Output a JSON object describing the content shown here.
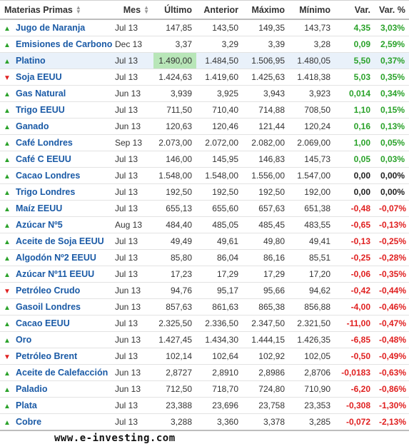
{
  "headers": {
    "name": "Materias Primas",
    "month": "Mes",
    "last": "Último",
    "prev": "Anterior",
    "high": "Máximo",
    "low": "Mínimo",
    "chg": "Var.",
    "chg_pct": "Var. %"
  },
  "colors": {
    "up": "#2aa22a",
    "down": "#e02020",
    "link": "#1a5aa6",
    "flash": "#b8e6b8",
    "highlight": "#e9f1fa"
  },
  "rows": [
    {
      "name": "Jugo de Naranja",
      "month": "Jul 13",
      "last": "147,85",
      "prev": "143,50",
      "high": "149,35",
      "low": "143,73",
      "chg": "4,35",
      "pct": "3,03%",
      "dir": "up"
    },
    {
      "name": "Emisiones de Carbono",
      "month": "Dec 13",
      "last": "3,37",
      "prev": "3,29",
      "high": "3,39",
      "low": "3,28",
      "chg": "0,09",
      "pct": "2,59%",
      "dir": "up"
    },
    {
      "name": "Platino",
      "month": "Jul 13",
      "last": "1.490,00",
      "prev": "1.484,50",
      "high": "1.506,95",
      "low": "1.480,05",
      "chg": "5,50",
      "pct": "0,37%",
      "dir": "up",
      "highlight": true,
      "flash": true
    },
    {
      "name": "Soja EEUU",
      "month": "Jul 13",
      "last": "1.424,63",
      "prev": "1.419,60",
      "high": "1.425,63",
      "low": "1.418,38",
      "chg": "5,03",
      "pct": "0,35%",
      "dir": "up",
      "arrow": "down"
    },
    {
      "name": "Gas Natural",
      "month": "Jun 13",
      "last": "3,939",
      "prev": "3,925",
      "high": "3,943",
      "low": "3,923",
      "chg": "0,014",
      "pct": "0,34%",
      "dir": "up"
    },
    {
      "name": "Trigo EEUU",
      "month": "Jul 13",
      "last": "711,50",
      "prev": "710,40",
      "high": "714,88",
      "low": "708,50",
      "chg": "1,10",
      "pct": "0,15%",
      "dir": "up"
    },
    {
      "name": "Ganado",
      "month": "Jun 13",
      "last": "120,63",
      "prev": "120,46",
      "high": "121,44",
      "low": "120,24",
      "chg": "0,16",
      "pct": "0,13%",
      "dir": "up"
    },
    {
      "name": "Café Londres",
      "month": "Sep 13",
      "last": "2.073,00",
      "prev": "2.072,00",
      "high": "2.082,00",
      "low": "2.069,00",
      "chg": "1,00",
      "pct": "0,05%",
      "dir": "up"
    },
    {
      "name": "Café C EEUU",
      "month": "Jul 13",
      "last": "146,00",
      "prev": "145,95",
      "high": "146,83",
      "low": "145,73",
      "chg": "0,05",
      "pct": "0,03%",
      "dir": "up"
    },
    {
      "name": "Cacao Londres",
      "month": "Jul 13",
      "last": "1.548,00",
      "prev": "1.548,00",
      "high": "1.556,00",
      "low": "1.547,00",
      "chg": "0,00",
      "pct": "0,00%",
      "dir": "neu",
      "arrow": "up"
    },
    {
      "name": "Trigo Londres",
      "month": "Jul 13",
      "last": "192,50",
      "prev": "192,50",
      "high": "192,50",
      "low": "192,00",
      "chg": "0,00",
      "pct": "0,00%",
      "dir": "neu",
      "arrow": "up"
    },
    {
      "name": "Maíz EEUU",
      "month": "Jul 13",
      "last": "655,13",
      "prev": "655,60",
      "high": "657,63",
      "low": "651,38",
      "chg": "-0,48",
      "pct": "-0,07%",
      "dir": "down",
      "arrow": "up"
    },
    {
      "name": "Azúcar Nº5",
      "month": "Aug 13",
      "last": "484,40",
      "prev": "485,05",
      "high": "485,45",
      "low": "483,55",
      "chg": "-0,65",
      "pct": "-0,13%",
      "dir": "down",
      "arrow": "up"
    },
    {
      "name": "Aceite de Soja EEUU",
      "month": "Jul 13",
      "last": "49,49",
      "prev": "49,61",
      "high": "49,80",
      "low": "49,41",
      "chg": "-0,13",
      "pct": "-0,25%",
      "dir": "down",
      "arrow": "up"
    },
    {
      "name": "Algodón Nº2 EEUU",
      "month": "Jul 13",
      "last": "85,80",
      "prev": "86,04",
      "high": "86,16",
      "low": "85,51",
      "chg": "-0,25",
      "pct": "-0,28%",
      "dir": "down",
      "arrow": "up"
    },
    {
      "name": "Azúcar Nº11 EEUU",
      "month": "Jul 13",
      "last": "17,23",
      "prev": "17,29",
      "high": "17,29",
      "low": "17,20",
      "chg": "-0,06",
      "pct": "-0,35%",
      "dir": "down",
      "arrow": "up"
    },
    {
      "name": "Petróleo Crudo",
      "month": "Jun 13",
      "last": "94,76",
      "prev": "95,17",
      "high": "95,66",
      "low": "94,62",
      "chg": "-0,42",
      "pct": "-0,44%",
      "dir": "down"
    },
    {
      "name": "Gasoil Londres",
      "month": "Jun 13",
      "last": "857,63",
      "prev": "861,63",
      "high": "865,38",
      "low": "856,88",
      "chg": "-4,00",
      "pct": "-0,46%",
      "dir": "down",
      "arrow": "up"
    },
    {
      "name": "Cacao EEUU",
      "month": "Jul 13",
      "last": "2.325,50",
      "prev": "2.336,50",
      "high": "2.347,50",
      "low": "2.321,50",
      "chg": "-11,00",
      "pct": "-0,47%",
      "dir": "down",
      "arrow": "up"
    },
    {
      "name": "Oro",
      "month": "Jun 13",
      "last": "1.427,45",
      "prev": "1.434,30",
      "high": "1.444,15",
      "low": "1.426,35",
      "chg": "-6,85",
      "pct": "-0,48%",
      "dir": "down",
      "arrow": "up"
    },
    {
      "name": "Petróleo Brent",
      "month": "Jul 13",
      "last": "102,14",
      "prev": "102,64",
      "high": "102,92",
      "low": "102,05",
      "chg": "-0,50",
      "pct": "-0,49%",
      "dir": "down"
    },
    {
      "name": "Aceite de Calefacción",
      "month": "Jun 13",
      "last": "2,8727",
      "prev": "2,8910",
      "high": "2,8986",
      "low": "2,8706",
      "chg": "-0,0183",
      "pct": "-0,63%",
      "dir": "down",
      "arrow": "up"
    },
    {
      "name": "Paladio",
      "month": "Jun 13",
      "last": "712,50",
      "prev": "718,70",
      "high": "724,80",
      "low": "710,90",
      "chg": "-6,20",
      "pct": "-0,86%",
      "dir": "down",
      "arrow": "up"
    },
    {
      "name": "Plata",
      "month": "Jul 13",
      "last": "23,388",
      "prev": "23,696",
      "high": "23,758",
      "low": "23,353",
      "chg": "-0,308",
      "pct": "-1,30%",
      "dir": "down",
      "arrow": "up"
    },
    {
      "name": "Cobre",
      "month": "Jul 13",
      "last": "3,288",
      "prev": "3,360",
      "high": "3,378",
      "low": "3,285",
      "chg": "-0,072",
      "pct": "-2,13%",
      "dir": "down",
      "arrow": "up"
    }
  ],
  "footer": "www.e-investing.com"
}
